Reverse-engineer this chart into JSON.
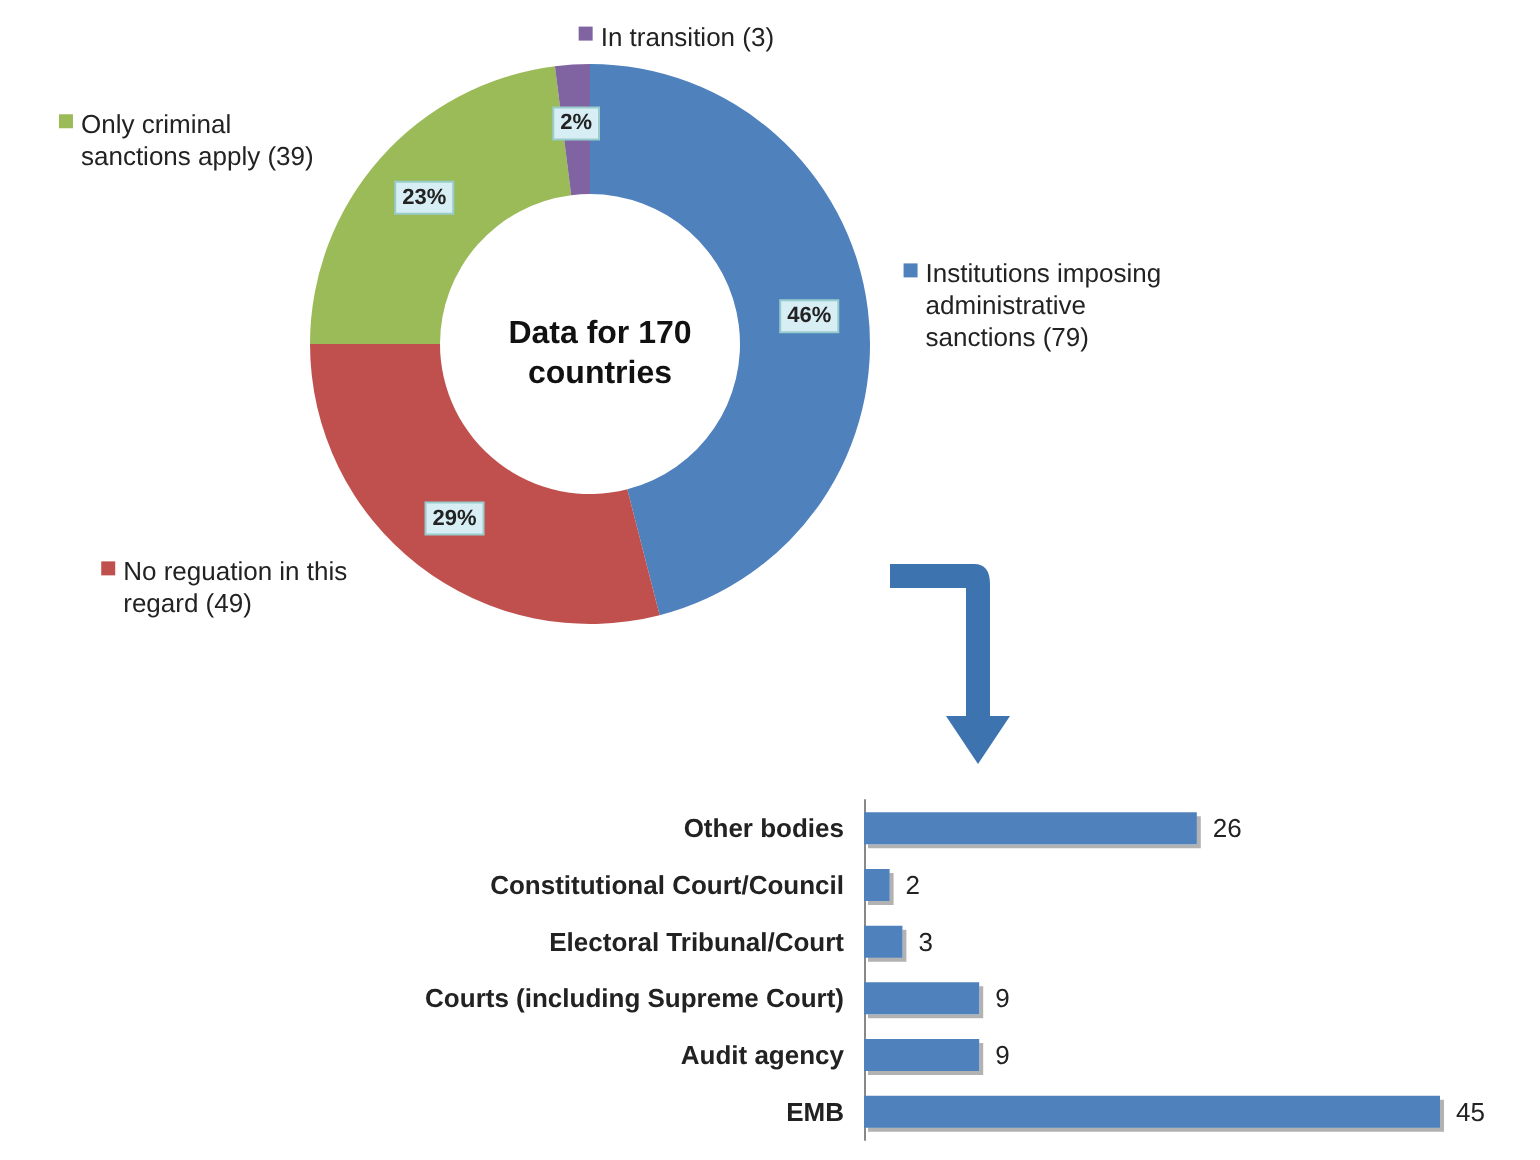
{
  "chart_data": [
    {
      "type": "donut",
      "title": "Data for 170 countries",
      "categories": [
        "Institutions imposing administrative sanctions (79)",
        "No reguation in this regard (49)",
        "Only criminal sanctions apply (39)",
        "In transition (3)"
      ],
      "values": [
        46,
        29,
        23,
        2
      ],
      "value_labels": [
        "46%",
        "29%",
        "23%",
        "2%"
      ],
      "colors": [
        "#4f81bd",
        "#c0504d",
        "#9bbb59",
        "#8064a2"
      ],
      "legend": "right"
    },
    {
      "type": "bar",
      "orientation": "horizontal",
      "categories": [
        "Other bodies",
        "Constitutional Court/Council",
        "Electoral Tribunal/Court",
        "Courts (including Supreme Court)",
        "Audit agency",
        "EMB"
      ],
      "values": [
        26,
        2,
        3,
        9,
        9,
        45
      ],
      "color": "#4f81bd",
      "data_labels": true
    }
  ]
}
